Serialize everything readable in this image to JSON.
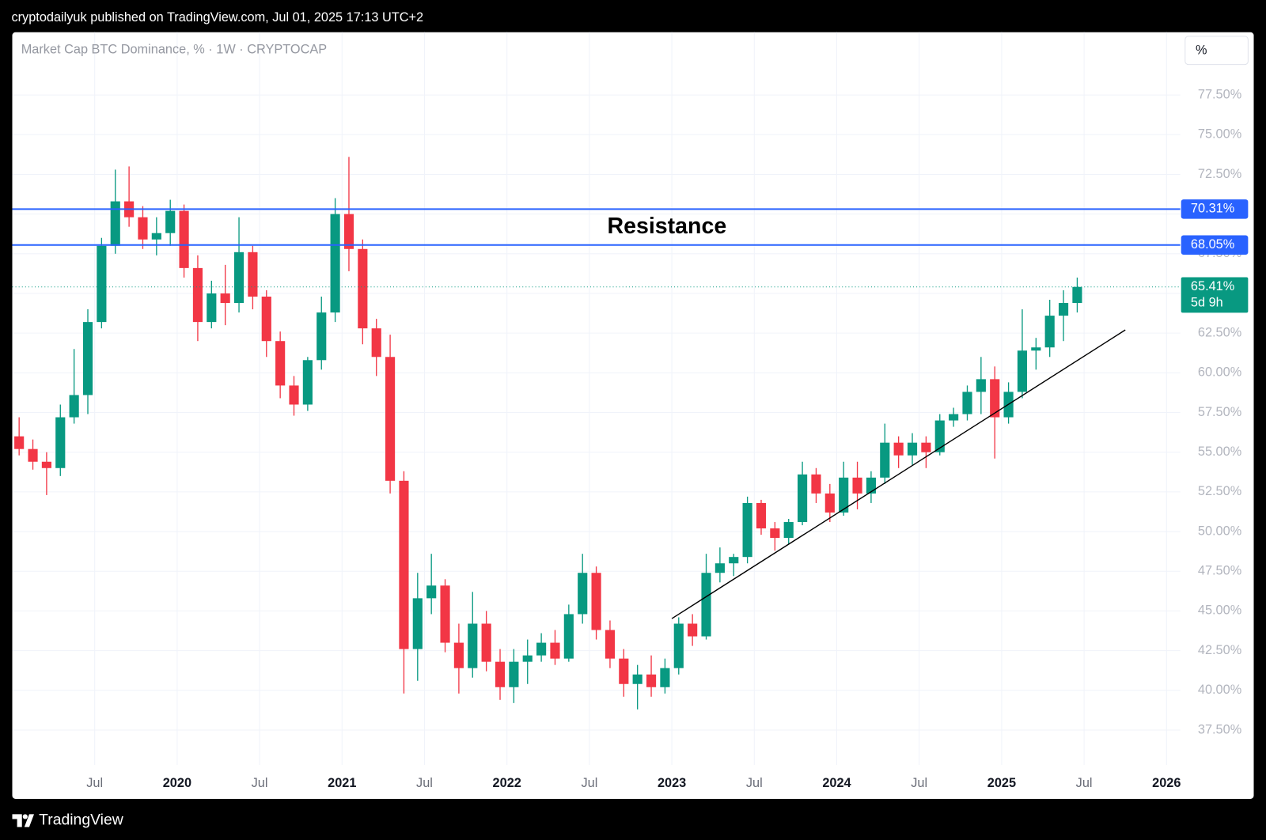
{
  "header": "cryptodailyuk published on TradingView.com, Jul 01, 2025 17:13 UTC+2",
  "footer": "TradingView",
  "chart_data": {
    "type": "candlestick",
    "title": "Market Cap BTC Dominance, % · 1W · CRYPTOCAP",
    "unit_button": "%",
    "annotation": "Resistance",
    "up_color": "#089981",
    "down_color": "#f23645",
    "grid": true,
    "x": [
      "2019-01",
      "2019-02",
      "2019-03",
      "2019-04",
      "2019-05",
      "2019-06",
      "2019-07",
      "2019-08",
      "2019-09",
      "2019-10",
      "2019-11",
      "2019-12",
      "2020-01",
      "2020-02",
      "2020-03",
      "2020-04",
      "2020-05",
      "2020-06",
      "2020-07",
      "2020-08",
      "2020-09",
      "2020-10",
      "2020-11",
      "2020-12",
      "2021-01",
      "2021-02",
      "2021-03",
      "2021-04",
      "2021-05",
      "2021-06",
      "2021-07",
      "2021-08",
      "2021-09",
      "2021-10",
      "2021-11",
      "2021-12",
      "2022-01",
      "2022-02",
      "2022-03",
      "2022-04",
      "2022-05",
      "2022-06",
      "2022-07",
      "2022-08",
      "2022-09",
      "2022-10",
      "2022-11",
      "2022-12",
      "2023-01",
      "2023-02",
      "2023-03",
      "2023-04",
      "2023-05",
      "2023-06",
      "2023-07",
      "2023-08",
      "2023-09",
      "2023-10",
      "2023-11",
      "2023-12",
      "2024-01",
      "2024-02",
      "2024-03",
      "2024-04",
      "2024-05",
      "2024-06",
      "2024-07",
      "2024-08",
      "2024-09",
      "2024-10",
      "2024-11",
      "2024-12",
      "2025-01",
      "2025-02",
      "2025-03",
      "2025-04",
      "2025-05",
      "2025-06"
    ],
    "open": [
      56.0,
      55.2,
      54.4,
      54.0,
      57.2,
      58.6,
      63.2,
      68.0,
      70.8,
      69.8,
      68.4,
      68.8,
      70.2,
      66.6,
      63.2,
      65.0,
      64.4,
      67.6,
      64.8,
      62.0,
      59.2,
      58.0,
      60.8,
      63.8,
      70.0,
      67.8,
      62.8,
      61.0,
      53.2,
      42.6,
      45.8,
      46.6,
      43.0,
      41.4,
      44.2,
      41.8,
      40.2,
      41.8,
      42.2,
      43.0,
      42.0,
      44.8,
      47.4,
      43.8,
      42.0,
      40.4,
      41.0,
      40.2,
      41.4,
      44.2,
      43.4,
      47.4,
      48.0,
      48.4,
      51.8,
      50.2,
      49.6,
      50.6,
      53.6,
      52.4,
      51.2,
      53.4,
      52.4,
      53.4,
      55.6,
      54.8,
      55.6,
      55.0,
      57.0,
      57.4,
      58.8,
      59.6,
      57.2,
      58.8,
      61.4,
      61.6,
      63.6,
      64.4
    ],
    "high": [
      57.2,
      55.8,
      55.0,
      58.0,
      61.5,
      64.0,
      68.5,
      72.8,
      73.0,
      70.5,
      69.8,
      70.9,
      70.6,
      67.4,
      65.8,
      66.8,
      69.8,
      68.0,
      65.2,
      62.6,
      59.8,
      61.0,
      64.8,
      71.0,
      73.6,
      68.4,
      63.4,
      62.4,
      53.8,
      47.4,
      48.6,
      47.0,
      44.2,
      46.2,
      45.0,
      42.6,
      42.6,
      43.2,
      43.6,
      43.8,
      45.4,
      48.6,
      47.8,
      44.4,
      42.6,
      41.6,
      42.2,
      42.0,
      44.6,
      44.8,
      48.6,
      49.0,
      48.6,
      52.2,
      52.0,
      50.6,
      50.8,
      54.4,
      54.0,
      53.0,
      54.4,
      54.4,
      53.8,
      56.8,
      56.0,
      56.2,
      56.0,
      57.4,
      57.8,
      59.2,
      61.0,
      60.4,
      59.4,
      64.0,
      62.2,
      64.6,
      65.2,
      66.0
    ],
    "low": [
      54.8,
      53.9,
      52.3,
      53.5,
      56.8,
      57.4,
      62.8,
      67.5,
      69.2,
      67.8,
      67.4,
      68.0,
      66.0,
      62.0,
      62.8,
      63.0,
      63.8,
      64.0,
      61.0,
      58.4,
      57.3,
      57.6,
      60.2,
      63.2,
      66.4,
      61.8,
      59.8,
      52.4,
      39.8,
      40.6,
      44.8,
      42.4,
      39.8,
      40.8,
      41.2,
      39.4,
      39.2,
      40.4,
      41.8,
      41.6,
      41.8,
      44.2,
      43.2,
      41.4,
      39.6,
      38.8,
      39.6,
      39.8,
      41.0,
      42.8,
      43.2,
      46.8,
      47.2,
      48.0,
      49.8,
      48.8,
      49.2,
      50.4,
      51.8,
      50.6,
      51.0,
      51.4,
      51.8,
      53.0,
      54.0,
      54.2,
      54.0,
      54.8,
      56.6,
      57.0,
      57.4,
      54.6,
      56.8,
      58.4,
      60.2,
      61.0,
      62.0,
      63.8
    ],
    "close": [
      55.2,
      54.4,
      54.0,
      57.2,
      58.6,
      63.2,
      68.0,
      70.8,
      69.8,
      68.4,
      68.8,
      70.2,
      66.6,
      63.2,
      65.0,
      64.4,
      67.6,
      64.8,
      62.0,
      59.2,
      58.0,
      60.8,
      63.8,
      70.0,
      67.8,
      62.8,
      61.0,
      53.2,
      42.6,
      45.8,
      46.6,
      43.0,
      41.4,
      44.2,
      41.8,
      40.2,
      41.8,
      42.2,
      43.0,
      42.0,
      44.8,
      47.4,
      43.8,
      42.0,
      40.4,
      41.0,
      40.2,
      41.4,
      44.2,
      43.4,
      47.4,
      48.0,
      48.4,
      51.8,
      50.2,
      49.6,
      50.6,
      53.6,
      52.4,
      51.2,
      53.4,
      52.4,
      53.4,
      55.6,
      54.8,
      55.6,
      55.0,
      57.0,
      57.4,
      58.8,
      59.6,
      57.2,
      58.8,
      61.4,
      61.6,
      63.6,
      64.4,
      65.41
    ],
    "xlim": [
      "2019-01",
      "2026-02"
    ],
    "xticks": [
      {
        "value": "2019-07",
        "label": "Jul"
      },
      {
        "value": "2020-01",
        "label": "2020"
      },
      {
        "value": "2020-07",
        "label": "Jul"
      },
      {
        "value": "2021-01",
        "label": "2021"
      },
      {
        "value": "2021-07",
        "label": "Jul"
      },
      {
        "value": "2022-01",
        "label": "2022"
      },
      {
        "value": "2022-07",
        "label": "Jul"
      },
      {
        "value": "2023-01",
        "label": "2023"
      },
      {
        "value": "2023-07",
        "label": "Jul"
      },
      {
        "value": "2024-01",
        "label": "2024"
      },
      {
        "value": "2024-07",
        "label": "Jul"
      },
      {
        "value": "2025-01",
        "label": "2025"
      },
      {
        "value": "2025-07",
        "label": "Jul"
      },
      {
        "value": "2026-01",
        "label": "2026"
      }
    ],
    "ylim": [
      35.3,
      81.45
    ],
    "yticks": [
      {
        "value": 37.5,
        "label": "37.50%"
      },
      {
        "value": 40,
        "label": "40.00%"
      },
      {
        "value": 42.5,
        "label": "42.50%"
      },
      {
        "value": 45,
        "label": "45.00%"
      },
      {
        "value": 47.5,
        "label": "47.50%"
      },
      {
        "value": 50,
        "label": "50.00%"
      },
      {
        "value": 52.5,
        "label": "52.50%"
      },
      {
        "value": 55,
        "label": "55.00%"
      },
      {
        "value": 57.5,
        "label": "57.50%"
      },
      {
        "value": 60,
        "label": "60.00%"
      },
      {
        "value": 62.5,
        "label": "62.50%"
      },
      {
        "value": 65,
        "label": "65.00%"
      },
      {
        "value": 67.5,
        "label": "67.50%"
      },
      {
        "value": 70,
        "label": "70.00%"
      },
      {
        "value": 72.5,
        "label": "72.50%"
      },
      {
        "value": 75,
        "label": "75.00%"
      },
      {
        "value": 77.5,
        "label": "77.50%"
      }
    ],
    "levels": [
      {
        "value": 70.31,
        "label": "70.31%",
        "color": "#2962ff"
      },
      {
        "value": 68.05,
        "label": "68.05%",
        "color": "#2962ff"
      }
    ],
    "last": {
      "value": 65.41,
      "label": "65.41%",
      "countdown": "5d 9h",
      "color": "#089981"
    },
    "trendline": {
      "x": [
        "2023-01",
        "2025-10"
      ],
      "y": [
        44.52,
        62.7
      ],
      "color": "#000000"
    }
  }
}
